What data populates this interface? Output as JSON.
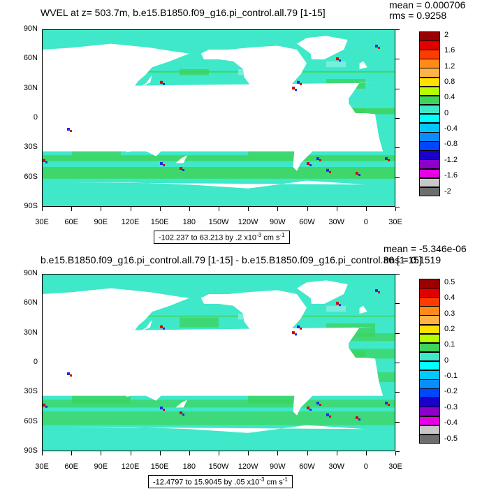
{
  "colors": {
    "ocean_base": "#3ee8c8",
    "ocean_light": "#7ef0e0",
    "green_band": "#3ed35a",
    "land": "#ffffff",
    "hot": "#d40000",
    "cold": "#1a2ee8",
    "frame": "#000000"
  },
  "color_scale": [
    "#9b0000",
    "#e10000",
    "#ff3c00",
    "#ff8a1a",
    "#ffb347",
    "#ffe000",
    "#b7ff00",
    "#3ed35a",
    "#3ee8c8",
    "#00ffff",
    "#00c8ff",
    "#0a8cff",
    "#0046ff",
    "#1a00c8",
    "#8c00c8",
    "#e600e6",
    "#c8c8c8",
    "#6e6e6e"
  ],
  "panels": [
    {
      "title": "WVEL at z= 503.7m, b.e15.B1850.f09_g16.pi_control.all.79 [1-15]",
      "mean": "mean = 0.000706",
      "rms": "rms = 0.9258",
      "range": "-102.237 to 63.213 by .2 x10",
      "range_exp": "-3",
      "range_unit": " cm s",
      "range_unit_exp": "-1",
      "y_ticks": [
        "90N",
        "60N",
        "30N",
        "0",
        "30S",
        "60S",
        "90S"
      ],
      "x_ticks": [
        "30E",
        "60E",
        "90E",
        "120E",
        "150E",
        "180",
        "150W",
        "120W",
        "90W",
        "60W",
        "30W",
        "0",
        "30E"
      ],
      "legend_labels": [
        "2",
        "1.6",
        "1.2",
        "0.8",
        "0.4",
        "0",
        "-0.4",
        "-0.8",
        "-1.2",
        "-1.6",
        "-2"
      ]
    },
    {
      "title": "b.e15.B1850.f09_g16.pi_control.all.79 [1-15] - b.e15.B1850.f09_g16.pi_control.36 [1-15]",
      "mean": "mean = -5.346e-06",
      "rms": "rms = 0.1519",
      "range": "-12.4797 to 15.9045 by .05 x10",
      "range_exp": "-3",
      "range_unit": " cm s",
      "range_unit_exp": "-1",
      "y_ticks": [
        "90N",
        "60N",
        "30N",
        "0",
        "30S",
        "60S",
        "90S"
      ],
      "x_ticks": [
        "30E",
        "60E",
        "90E",
        "120E",
        "150E",
        "180",
        "150W",
        "120W",
        "90W",
        "60W",
        "30W",
        "0",
        "30E"
      ],
      "legend_labels": [
        "0.5",
        "0.4",
        "0.3",
        "0.2",
        "0.1",
        "0",
        "-0.1",
        "-0.2",
        "-0.3",
        "-0.4",
        "-0.5"
      ]
    }
  ],
  "chart_data": [
    {
      "type": "heatmap",
      "title": "WVEL at z= 503.7m, b.e15.B1850.f09_g16.pi_control.all.79 [1-15]",
      "xlabel": "",
      "ylabel": "",
      "x_range": [
        "30E",
        "30E"
      ],
      "y_range": [
        "90S",
        "90N"
      ],
      "colorbar": [
        -2,
        -1.6,
        -1.2,
        -0.8,
        -0.4,
        0,
        0.4,
        0.8,
        1.2,
        1.6,
        2
      ],
      "mean": 0.000706,
      "rms": 0.9258,
      "data_min": -102.237,
      "data_max": 63.213
    },
    {
      "type": "heatmap",
      "title": "b.e15.B1850.f09_g16.pi_control.all.79 [1-15] - b.e15.B1850.f09_g16.pi_control.36 [1-15]",
      "xlabel": "",
      "ylabel": "",
      "x_range": [
        "30E",
        "30E"
      ],
      "y_range": [
        "90S",
        "90N"
      ],
      "colorbar": [
        -0.5,
        -0.4,
        -0.3,
        -0.2,
        -0.1,
        0,
        0.1,
        0.2,
        0.3,
        0.4,
        0.5
      ],
      "mean": -5.346e-06,
      "rms": 0.1519,
      "data_min": -12.4797,
      "data_max": 15.9045
    }
  ]
}
